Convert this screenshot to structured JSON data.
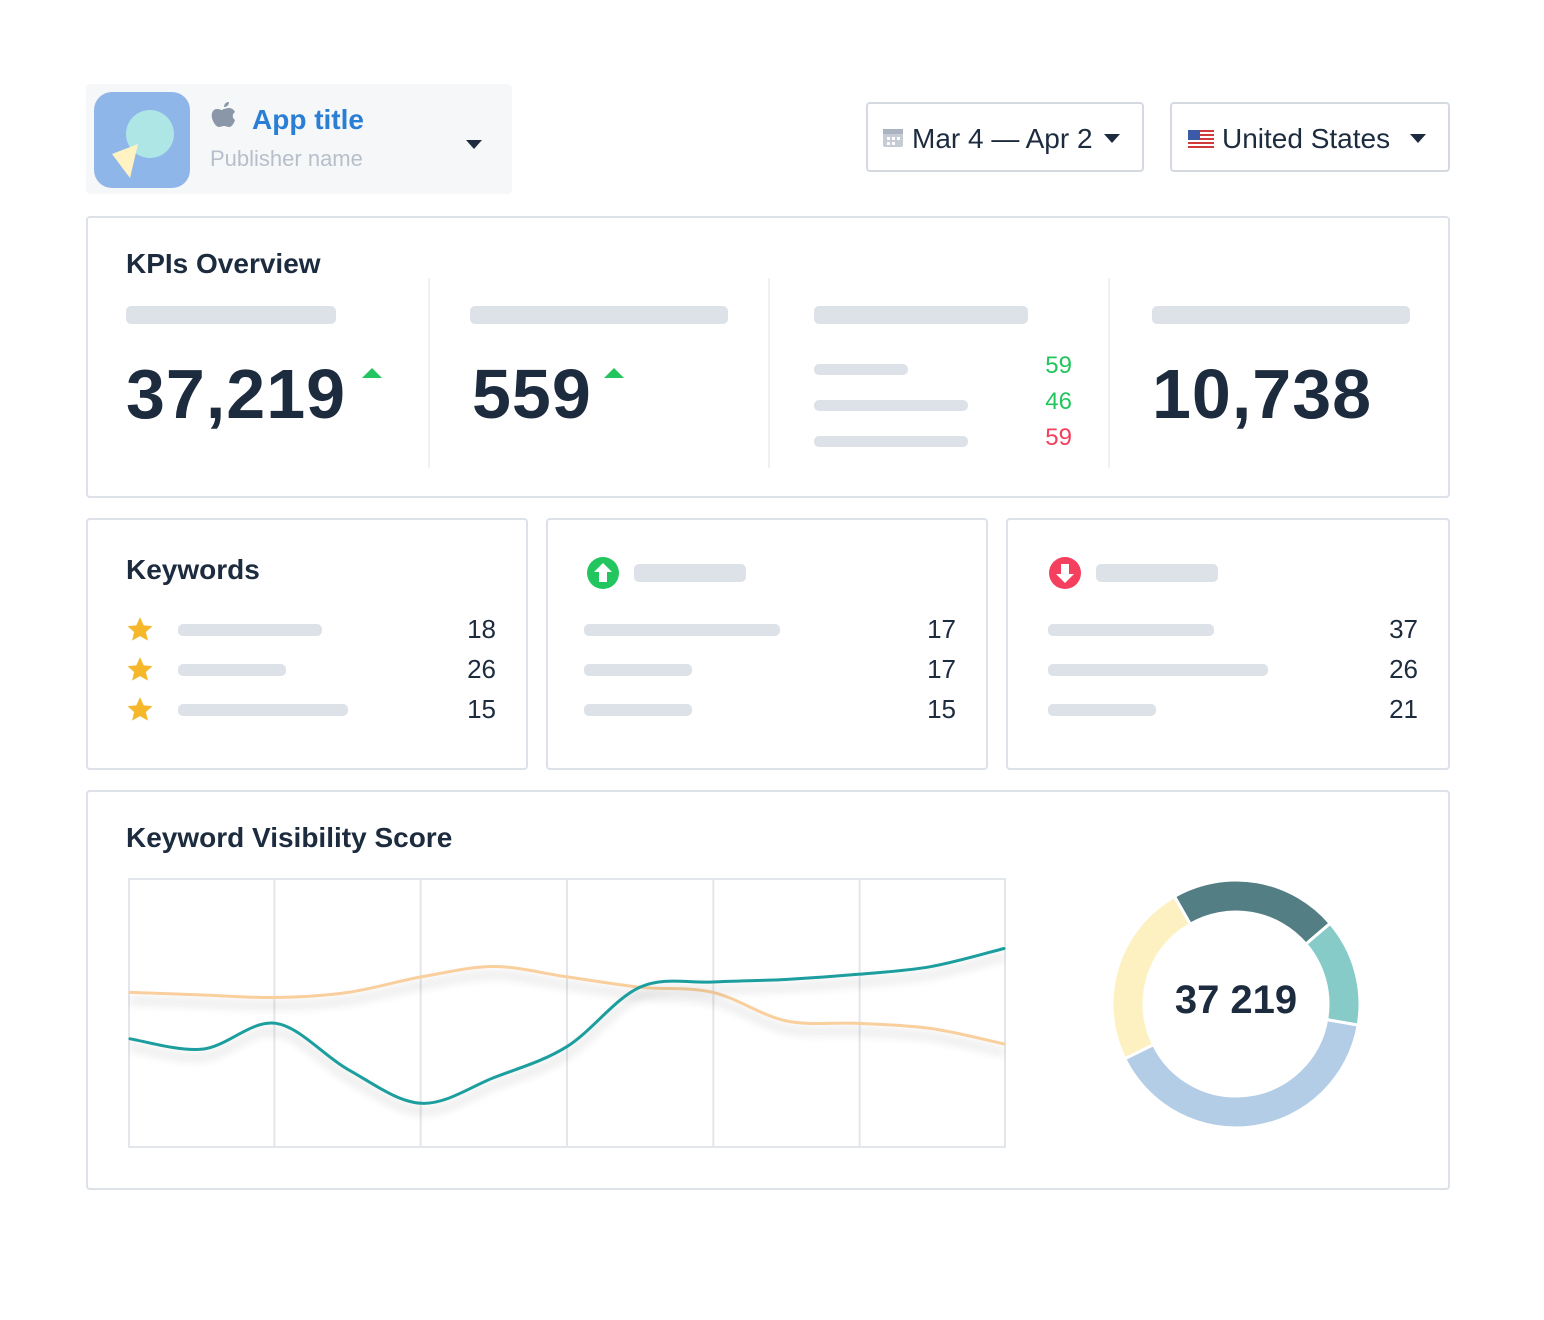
{
  "header": {
    "app_title": "App title",
    "publisher": "Publisher name",
    "date_range": "Mar 4 — Apr 2",
    "country": "United States"
  },
  "kpis": {
    "title": "KPIs Overview",
    "value1": "37,219",
    "value2": "559",
    "small": [
      "59",
      "46",
      "59"
    ],
    "value4": "10,738"
  },
  "keywords": {
    "title": "Keywords",
    "values": [
      "18",
      "26",
      "15"
    ]
  },
  "rising": {
    "values": [
      "17",
      "17",
      "15"
    ]
  },
  "falling": {
    "values": [
      "37",
      "26",
      "21"
    ]
  },
  "visibility": {
    "title": "Keyword Visibility Score",
    "total": "37 219"
  },
  "colors": {
    "teal": "#1a9e9e",
    "peach": "#f8cf9d",
    "green": "#22c55e",
    "red": "#f43f5e",
    "star": "#f4b82a",
    "donut": [
      "#537e84",
      "#86cbc8",
      "#b4cde7",
      "#fdf1c1"
    ]
  },
  "icons": {
    "store": "apple-icon",
    "calendar": "calendar-icon",
    "flag": "us-flag-icon",
    "star": "star-icon",
    "rise": "arrow-up-circle-icon",
    "fall": "arrow-down-circle-icon"
  },
  "chart_data": {
    "type": "line",
    "title": "Keyword Visibility Score",
    "xlabel": "",
    "ylabel": "",
    "x": [
      0,
      0.5,
      1,
      1.5,
      2,
      2.5,
      3,
      3.5,
      4,
      4.5,
      5,
      5.5,
      6
    ],
    "ylim": [
      0,
      100
    ],
    "grid": true,
    "series": [
      {
        "values": [
          58,
          57,
          56,
          58,
          64,
          68,
          64,
          60,
          58,
          47,
          46,
          44,
          38
        ]
      },
      {
        "values": [
          40,
          36,
          46,
          28,
          15,
          25,
          37,
          60,
          62,
          63,
          65,
          68,
          75
        ]
      }
    ],
    "donut": {
      "type": "pie",
      "total_label": "37 219",
      "values": [
        22,
        14,
        40,
        24
      ]
    }
  }
}
